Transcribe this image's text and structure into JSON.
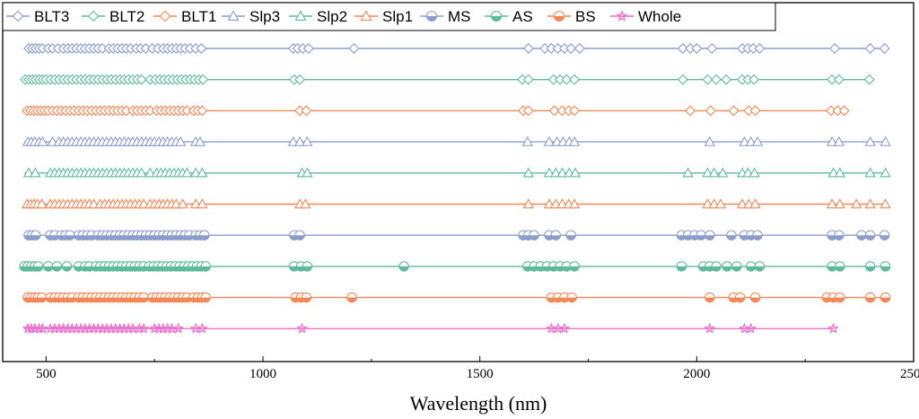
{
  "chart_data": {
    "type": "scatter",
    "title": "",
    "xlabel": "Wavelength (nm)",
    "ylabel": "",
    "xlim": [
      400,
      2500
    ],
    "xticks": [
      500,
      1000,
      1500,
      2000,
      2500
    ],
    "xtick_labels": [
      "500",
      "1000",
      "1500",
      "2000",
      "2500"
    ],
    "legend_position": "top-left",
    "series": [
      {
        "name": "BLT3",
        "color": "#8B9DCB",
        "marker": "diamond",
        "x": [
          460,
          468,
          476,
          484,
          492,
          505,
          515,
          528,
          540,
          550,
          560,
          570,
          580,
          590,
          600,
          610,
          620,
          630,
          645,
          655,
          665,
          675,
          685,
          695,
          708,
          718,
          730,
          745,
          758,
          770,
          780,
          790,
          800,
          810,
          820,
          832,
          845,
          858,
          1070,
          1080,
          1092,
          1105,
          1210,
          1612,
          1650,
          1665,
          1680,
          1695,
          1710,
          1730,
          1968,
          1985,
          2000,
          2035,
          2105,
          2118,
          2130,
          2145,
          2318,
          2400,
          2433
        ]
      },
      {
        "name": "BLT2",
        "color": "#5DBB9B",
        "marker": "diamond",
        "x": [
          452,
          460,
          468,
          476,
          484,
          492,
          500,
          510,
          520,
          530,
          540,
          550,
          560,
          570,
          580,
          590,
          600,
          610,
          620,
          630,
          640,
          650,
          660,
          670,
          680,
          690,
          700,
          710,
          720,
          740,
          752,
          762,
          772,
          782,
          792,
          802,
          812,
          822,
          832,
          842,
          852,
          862,
          1072,
          1085,
          1598,
          1612,
          1670,
          1685,
          1700,
          1718,
          1968,
          2025,
          2045,
          2068,
          2105,
          2118,
          2132,
          2312,
          2328,
          2398
        ]
      },
      {
        "name": "BLT1",
        "color": "#F48756",
        "marker": "diamond",
        "x": [
          456,
          464,
          472,
          480,
          488,
          496,
          505,
          515,
          525,
          535,
          545,
          555,
          565,
          575,
          585,
          595,
          605,
          615,
          625,
          635,
          645,
          655,
          665,
          675,
          685,
          700,
          710,
          720,
          730,
          740,
          755,
          765,
          775,
          785,
          795,
          805,
          815,
          825,
          840,
          850,
          860,
          1085,
          1100,
          1600,
          1612,
          1672,
          1690,
          1705,
          1718,
          1985,
          2032,
          2085,
          2120,
          2135,
          2310,
          2325,
          2340
        ]
      },
      {
        "name": "Slp3",
        "color": "#8B9DCB",
        "marker": "triangle",
        "x": [
          458,
          466,
          474,
          484,
          492,
          515,
          530,
          540,
          550,
          560,
          570,
          580,
          590,
          600,
          610,
          620,
          630,
          640,
          650,
          660,
          670,
          680,
          690,
          700,
          710,
          720,
          730,
          740,
          750,
          760,
          770,
          780,
          790,
          800,
          810,
          845,
          855,
          1070,
          1085,
          1102,
          1610,
          1660,
          1678,
          1692,
          1706,
          1718,
          2030,
          2110,
          2125,
          2140,
          2312,
          2328,
          2400,
          2435
        ]
      },
      {
        "name": "Slp2",
        "color": "#5DBB9B",
        "marker": "triangle",
        "x": [
          460,
          475,
          510,
          520,
          530,
          540,
          550,
          560,
          570,
          580,
          590,
          600,
          610,
          620,
          630,
          640,
          650,
          660,
          670,
          680,
          690,
          700,
          710,
          720,
          740,
          755,
          765,
          775,
          785,
          795,
          805,
          815,
          825,
          845,
          860,
          1090,
          1102,
          1612,
          1660,
          1675,
          1690,
          1706,
          1720,
          1980,
          2025,
          2040,
          2060,
          2105,
          2118,
          2133,
          2315,
          2330,
          2400,
          2435
        ]
      },
      {
        "name": "Slp1",
        "color": "#F48756",
        "marker": "triangle",
        "x": [
          456,
          464,
          472,
          480,
          490,
          510,
          520,
          530,
          540,
          550,
          560,
          570,
          580,
          590,
          600,
          610,
          625,
          635,
          645,
          655,
          665,
          675,
          685,
          695,
          705,
          715,
          725,
          740,
          750,
          760,
          770,
          780,
          790,
          800,
          815,
          845,
          860,
          1085,
          1098,
          1612,
          1660,
          1675,
          1690,
          1705,
          1718,
          2025,
          2040,
          2055,
          2105,
          2120,
          2135,
          2312,
          2330,
          2368,
          2400,
          2435
        ]
      },
      {
        "name": "MS",
        "color": "#8B9DCB",
        "marker": "circle",
        "x": [
          460,
          468,
          476,
          510,
          520,
          535,
          545,
          555,
          575,
          585,
          595,
          605,
          620,
          630,
          640,
          650,
          660,
          670,
          680,
          690,
          700,
          710,
          720,
          730,
          740,
          750,
          760,
          770,
          780,
          790,
          800,
          810,
          820,
          830,
          845,
          855,
          865,
          1072,
          1085,
          1600,
          1612,
          1625,
          1660,
          1675,
          1710,
          1965,
          1980,
          1995,
          2010,
          2030,
          2080,
          2110,
          2125,
          2140,
          2312,
          2328,
          2380,
          2400,
          2433
        ]
      },
      {
        "name": "AS",
        "color": "#5DBB9B",
        "marker": "circle",
        "x": [
          450,
          458,
          466,
          474,
          482,
          505,
          525,
          548,
          575,
          590,
          600,
          615,
          625,
          635,
          645,
          655,
          665,
          675,
          685,
          695,
          705,
          715,
          725,
          738,
          748,
          758,
          768,
          778,
          788,
          798,
          808,
          818,
          828,
          838,
          848,
          858,
          868,
          1072,
          1088,
          1102,
          1325,
          1610,
          1625,
          1640,
          1655,
          1670,
          1685,
          1700,
          1718,
          1965,
          2015,
          2030,
          2045,
          2070,
          2092,
          2125,
          2145,
          2312,
          2330,
          2400,
          2435
        ]
      },
      {
        "name": "BS",
        "color": "#F48756",
        "marker": "circle",
        "x": [
          458,
          466,
          474,
          482,
          490,
          510,
          520,
          530,
          540,
          550,
          560,
          575,
          585,
          595,
          605,
          615,
          625,
          635,
          645,
          655,
          665,
          675,
          685,
          695,
          705,
          715,
          725,
          745,
          755,
          765,
          775,
          785,
          795,
          805,
          815,
          825,
          840,
          850,
          860,
          868,
          1075,
          1088,
          1100,
          1205,
          1665,
          1680,
          1695,
          1712,
          2030,
          2085,
          2100,
          2135,
          2300,
          2315,
          2330,
          2400,
          2435
        ]
      },
      {
        "name": "Whole",
        "color": "#E86FCB",
        "marker": "star",
        "x": [
          458,
          466,
          474,
          484,
          492,
          510,
          520,
          530,
          540,
          550,
          560,
          570,
          580,
          590,
          600,
          610,
          620,
          630,
          640,
          650,
          660,
          670,
          680,
          690,
          700,
          715,
          725,
          750,
          760,
          770,
          780,
          790,
          805,
          845,
          860,
          1090,
          1665,
          1680,
          1695,
          2030,
          2110,
          2125,
          2315
        ]
      }
    ]
  }
}
